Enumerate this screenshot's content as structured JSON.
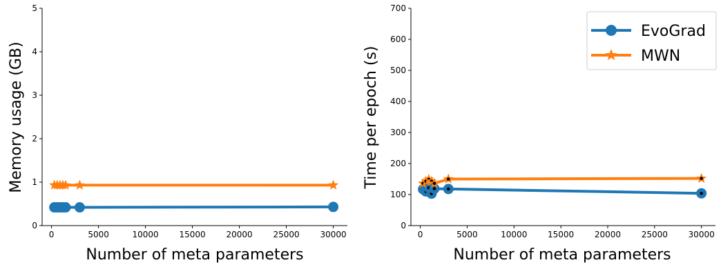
{
  "chart_data": [
    {
      "type": "line",
      "title": "",
      "xlabel": "Number of meta parameters",
      "ylabel": "Memory usage (GB)",
      "xlim": [
        -1000,
        31500
      ],
      "ylim": [
        0,
        5
      ],
      "xticks": [
        0,
        5000,
        10000,
        15000,
        20000,
        25000,
        30000
      ],
      "yticks": [
        0,
        1,
        2,
        3,
        4,
        5
      ],
      "grid": false,
      "series": [
        {
          "name": "EvoGrad",
          "color": "#1f77b4",
          "marker": "circle",
          "x": [
            300,
            600,
            900,
            1200,
            1500,
            3000,
            30000
          ],
          "y": [
            0.42,
            0.42,
            0.42,
            0.42,
            0.42,
            0.42,
            0.43
          ],
          "markers_dotted": false
        },
        {
          "name": "MWN",
          "color": "#ff7f0e",
          "marker": "star",
          "x": [
            300,
            600,
            900,
            1200,
            1500,
            3000,
            30000
          ],
          "y": [
            0.93,
            0.93,
            0.93,
            0.93,
            0.93,
            0.93,
            0.93
          ],
          "markers_dotted": false
        }
      ]
    },
    {
      "type": "line",
      "title": "",
      "xlabel": "Number of meta parameters",
      "ylabel": "Time per epoch (s)",
      "xlim": [
        -1000,
        31500
      ],
      "ylim": [
        0,
        700
      ],
      "xticks": [
        0,
        5000,
        10000,
        15000,
        20000,
        25000,
        30000
      ],
      "yticks": [
        0,
        100,
        200,
        300,
        400,
        500,
        600,
        700
      ],
      "grid": false,
      "legend": {
        "position": "top-right",
        "entries": [
          {
            "label": "EvoGrad",
            "color": "#1f77b4",
            "marker": "circle"
          },
          {
            "label": "MWN",
            "color": "#ff7f0e",
            "marker": "star"
          }
        ]
      },
      "series": [
        {
          "name": "EvoGrad",
          "color": "#1f77b4",
          "marker": "circle",
          "x": [
            300,
            600,
            900,
            1200,
            1500,
            3000,
            30000
          ],
          "y": [
            117,
            110,
            122,
            103,
            119,
            118,
            104
          ],
          "markers_dotted": true
        },
        {
          "name": "MWN",
          "color": "#ff7f0e",
          "marker": "star",
          "x": [
            300,
            600,
            900,
            1200,
            1500,
            3000,
            30000
          ],
          "y": [
            136,
            143,
            149,
            143,
            136,
            150,
            152
          ],
          "markers_dotted": true
        }
      ]
    }
  ]
}
